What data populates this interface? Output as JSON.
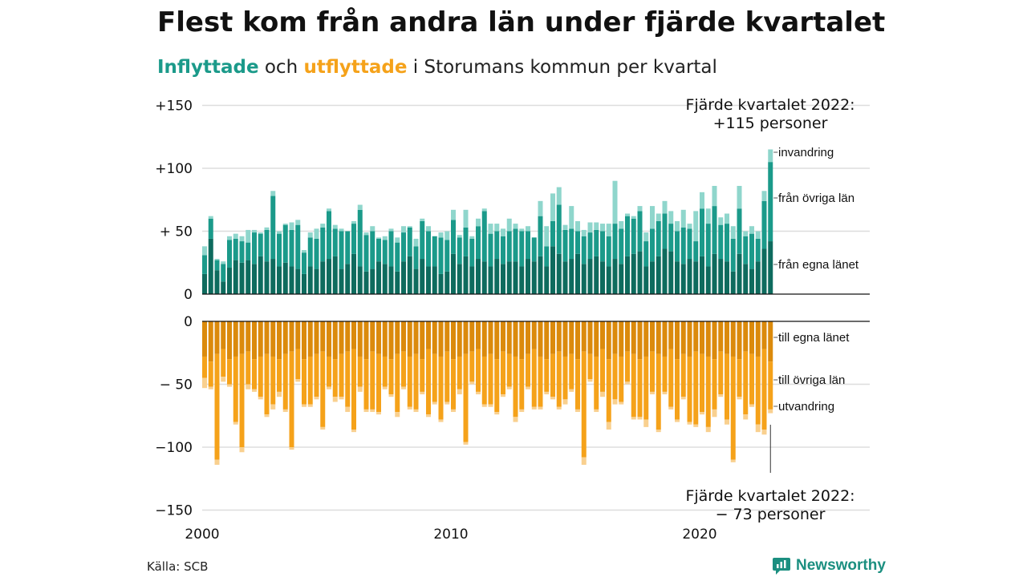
{
  "title": "Flest kom från andra län under fjärde kvartalet",
  "subtitle": {
    "inflyttade": "Inflyttade",
    "och": " och ",
    "utflyttade": "utflyttade",
    "rest": " i Storumans kommun per kvartal"
  },
  "source": "Källa: SCB",
  "brand": "Newsworthy",
  "colors": {
    "in_own": "#0e6b5e",
    "in_other": "#1b9a8a",
    "in_imm": "#8fd6cc",
    "out_own": "#db8a0c",
    "out_other": "#f5a21a",
    "out_emig": "#f9d08f",
    "grid": "#dddddd",
    "axis": "#111111"
  },
  "chart_data": {
    "type": "bar",
    "stacked": true,
    "diverging": true,
    "x_start": "2000-Q1",
    "x_end": "2022-Q4",
    "x_ticks": [
      "2000",
      "2010",
      "2020"
    ],
    "top_panel": {
      "yticks": [
        "+150",
        "+100",
        "+ 50",
        "0"
      ],
      "ytick_values": [
        150,
        100,
        50,
        0
      ],
      "ylim": [
        0,
        150
      ],
      "series_labels": [
        "invandring",
        "från övriga län",
        "från egna länet"
      ],
      "annotation_l1": "Fjärde kvartalet 2022:",
      "annotation_l2": "+115 personer"
    },
    "bottom_panel": {
      "yticks": [
        "0",
        "− 50",
        "−100",
        "−150"
      ],
      "ytick_values": [
        0,
        -50,
        -100,
        -150
      ],
      "ylim": [
        -150,
        0
      ],
      "series_labels": [
        "till egna länet",
        "till övriga län",
        "utvandring"
      ],
      "annotation_l1": "Fjärde kvartalet 2022:",
      "annotation_l2": "− 73 personer"
    },
    "inflow": {
      "own": [
        16,
        44,
        19,
        10,
        21,
        27,
        25,
        27,
        24,
        30,
        26,
        28,
        22,
        25,
        22,
        20,
        16,
        22,
        20,
        26,
        28,
        30,
        20,
        24,
        32,
        22,
        18,
        20,
        26,
        24,
        22,
        18,
        26,
        30,
        20,
        28,
        22,
        22,
        16,
        18,
        32,
        24,
        30,
        22,
        28,
        26,
        22,
        28,
        24,
        26,
        26,
        22,
        28,
        26,
        30,
        22,
        38,
        32,
        26,
        28,
        32,
        24,
        28,
        30,
        26,
        22,
        28,
        24,
        30,
        32,
        34,
        22,
        26,
        30,
        36,
        34,
        26,
        24,
        28,
        26,
        30,
        22,
        32,
        28,
        26,
        18,
        32,
        24,
        20,
        26,
        36,
        42
      ],
      "other": [
        15,
        16,
        8,
        14,
        22,
        17,
        17,
        14,
        25,
        18,
        25,
        50,
        26,
        30,
        29,
        35,
        17,
        23,
        24,
        27,
        38,
        22,
        30,
        26,
        24,
        45,
        29,
        30,
        18,
        19,
        28,
        23,
        23,
        23,
        18,
        30,
        28,
        24,
        29,
        25,
        27,
        21,
        23,
        22,
        26,
        40,
        26,
        22,
        22,
        24,
        26,
        28,
        22,
        19,
        32,
        16,
        20,
        39,
        25,
        24,
        18,
        22,
        21,
        21,
        24,
        24,
        28,
        28,
        32,
        28,
        32,
        20,
        26,
        28,
        28,
        22,
        24,
        29,
        24,
        16,
        38,
        34,
        38,
        27,
        30,
        26,
        36,
        22,
        28,
        18,
        38,
        63
      ],
      "imm": [
        7,
        2,
        1,
        2,
        3,
        4,
        4,
        10,
        2,
        1,
        2,
        4,
        2,
        1,
        6,
        4,
        2,
        4,
        8,
        3,
        2,
        3,
        2,
        0,
        2,
        4,
        2,
        4,
        1,
        3,
        2,
        4,
        5,
        1,
        6,
        2,
        4,
        0,
        4,
        7,
        8,
        2,
        14,
        2,
        6,
        2,
        8,
        6,
        6,
        10,
        4,
        2,
        4,
        0,
        12,
        16,
        22,
        14,
        4,
        18,
        8,
        5,
        8,
        6,
        6,
        10,
        34,
        6,
        2,
        2,
        4,
        7,
        18,
        6,
        10,
        10,
        8,
        14,
        4,
        24,
        13,
        12,
        16,
        6,
        8,
        10,
        18,
        4,
        6,
        6,
        8,
        10
      ]
    },
    "outflow": {
      "own": [
        -28,
        -32,
        -26,
        -22,
        -30,
        -28,
        -26,
        -24,
        -30,
        -28,
        -26,
        -28,
        -30,
        -26,
        -24,
        -22,
        -30,
        -28,
        -26,
        -24,
        -28,
        -30,
        -26,
        -24,
        -22,
        -28,
        -30,
        -24,
        -26,
        -28,
        -30,
        -26,
        -24,
        -28,
        -26,
        -30,
        -22,
        -26,
        -28,
        -24,
        -30,
        -28,
        -26,
        -24,
        -22,
        -28,
        -26,
        -30,
        -24,
        -26,
        -28,
        -30,
        -26,
        -22,
        -28,
        -30,
        -26,
        -24,
        -28,
        -26,
        -30,
        -24,
        -26,
        -28,
        -22,
        -30,
        -26,
        -28,
        -24,
        -26,
        -30,
        -28,
        -24,
        -26,
        -28,
        -22,
        -30,
        -26,
        -28,
        -24,
        -26,
        -28,
        -30,
        -24,
        -26,
        -28,
        -30,
        -24,
        -26,
        -28,
        -22,
        -32
      ],
      "other": [
        -17,
        -20,
        -84,
        -22,
        -20,
        -52,
        -74,
        -26,
        -24,
        -32,
        -48,
        -38,
        -26,
        -44,
        -76,
        -24,
        -36,
        -38,
        -34,
        -60,
        -24,
        -30,
        -34,
        -44,
        -64,
        -24,
        -40,
        -46,
        -46,
        -24,
        -28,
        -46,
        -28,
        -40,
        -44,
        -26,
        -52,
        -38,
        -50,
        -40,
        -40,
        -26,
        -70,
        -24,
        -34,
        -38,
        -40,
        -42,
        -34,
        -26,
        -48,
        -40,
        -26,
        -46,
        -40,
        -26,
        -34,
        -44,
        -34,
        -28,
        -40,
        -84,
        -20,
        -42,
        -34,
        -50,
        -36,
        -36,
        -24,
        -50,
        -46,
        -50,
        -32,
        -60,
        -28,
        -46,
        -48,
        -34,
        -52,
        -58,
        -46,
        -56,
        -40,
        -34,
        -52,
        -82,
        -30,
        -50,
        -40,
        -54,
        -64,
        -38
      ],
      "emig": [
        -8,
        -2,
        -4,
        -4,
        -2,
        -2,
        -4,
        -4,
        -2,
        -2,
        -2,
        -4,
        -4,
        -2,
        -2,
        -2,
        -2,
        -2,
        -2,
        -2,
        -2,
        -4,
        -2,
        -4,
        -2,
        -4,
        -2,
        -2,
        -2,
        -2,
        -2,
        -4,
        -2,
        -2,
        -2,
        -2,
        -2,
        -2,
        -2,
        -2,
        -2,
        -4,
        -2,
        -2,
        -2,
        -2,
        -2,
        -2,
        -2,
        -2,
        -4,
        -2,
        -2,
        -2,
        -2,
        -2,
        -2,
        -2,
        -4,
        -2,
        -2,
        -6,
        -2,
        -2,
        -4,
        -6,
        -4,
        -2,
        -2,
        -2,
        -2,
        -6,
        -2,
        -2,
        -2,
        -2,
        -2,
        -2,
        -2,
        -2,
        -2,
        -4,
        -6,
        -2,
        -4,
        -2,
        -2,
        -4,
        -2,
        -6,
        -4,
        -3
      ]
    }
  }
}
